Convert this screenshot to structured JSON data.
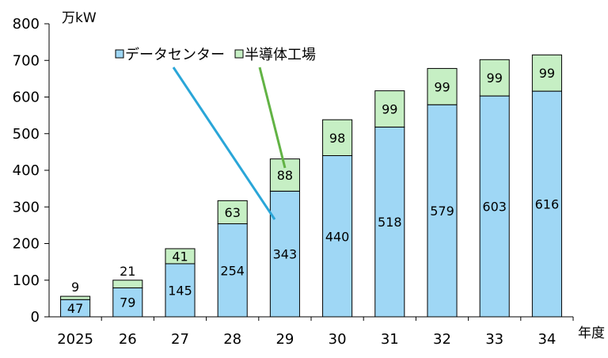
{
  "chart_data": {
    "type": "bar",
    "stacked": true,
    "categories": [
      "2025",
      "26",
      "27",
      "28",
      "29",
      "30",
      "31",
      "32",
      "33",
      "34"
    ],
    "series": [
      {
        "name": "データセンター",
        "values": [
          47,
          79,
          145,
          254,
          343,
          440,
          518,
          579,
          603,
          616
        ],
        "color": "#9fd7f5"
      },
      {
        "name": "半導体工場",
        "values": [
          9,
          21,
          41,
          63,
          88,
          98,
          99,
          99,
          99,
          99
        ],
        "color": "#c6efc4"
      }
    ],
    "ylabel": "万kW",
    "xlabel": "年度",
    "ylim": [
      0,
      800
    ],
    "yticks": [
      0,
      100,
      200,
      300,
      400,
      500,
      600,
      700,
      800
    ],
    "grid": false,
    "legend_position": "top-left",
    "leader_line_colors": [
      "#2aa6d8",
      "#62b345"
    ]
  }
}
